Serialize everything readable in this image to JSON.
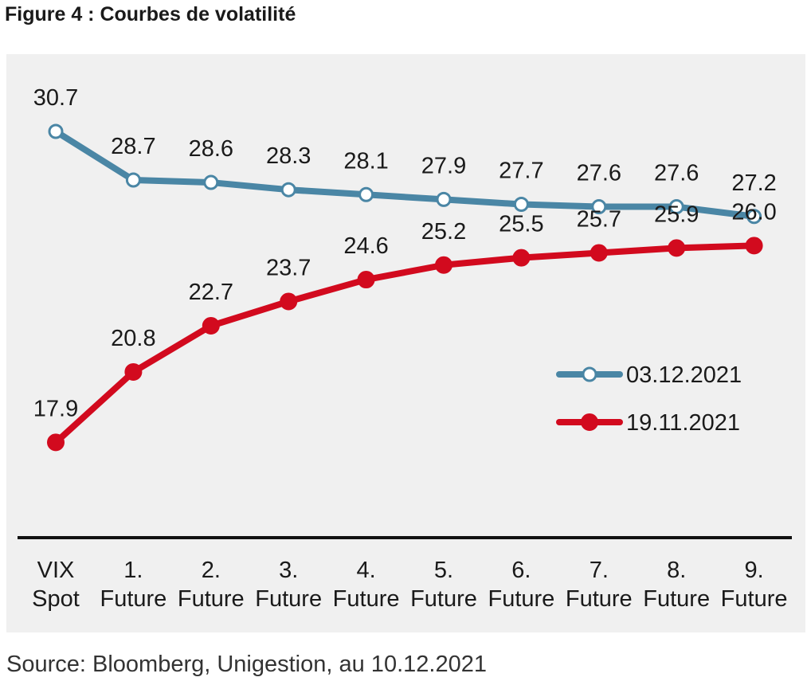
{
  "figure_title": "Figure 4 : Courbes de volatilité",
  "source": "Source: Bloomberg, Unigestion, au 10.12.2021",
  "chart_data": {
    "type": "line",
    "title": "",
    "xlabel": "",
    "ylabel": "",
    "ylim": [
      10,
      33
    ],
    "grid": false,
    "legend_position": "right",
    "categories": [
      [
        "VIX",
        "Spot"
      ],
      [
        "1.",
        "Future"
      ],
      [
        "2.",
        "Future"
      ],
      [
        "3.",
        "Future"
      ],
      [
        "4.",
        "Future"
      ],
      [
        "5.",
        "Future"
      ],
      [
        "6.",
        "Future"
      ],
      [
        "7.",
        "Future"
      ],
      [
        "8.",
        "Future"
      ],
      [
        "9.",
        "Future"
      ]
    ],
    "series": [
      {
        "name": "03.12.2021",
        "color": "#4a86a5",
        "marker": "open-circle",
        "values": [
          30.7,
          28.7,
          28.6,
          28.3,
          28.1,
          27.9,
          27.7,
          27.6,
          27.6,
          27.2
        ],
        "labels": [
          "30.7",
          "28.7",
          "28.6",
          "28.3",
          "28.1",
          "27.9",
          "27.7",
          "27.6",
          "27.6",
          "27.2"
        ]
      },
      {
        "name": "19.11.2021",
        "color": "#d20a1e",
        "marker": "filled-circle",
        "values": [
          17.9,
          20.8,
          22.7,
          23.7,
          24.6,
          25.2,
          25.5,
          25.7,
          25.9,
          26.0
        ],
        "labels": [
          "17.9",
          "20.8",
          "22.7",
          "23.7",
          "24.6",
          "25.2",
          "25.5",
          "25.7",
          "25.9",
          "26.0"
        ]
      }
    ]
  }
}
